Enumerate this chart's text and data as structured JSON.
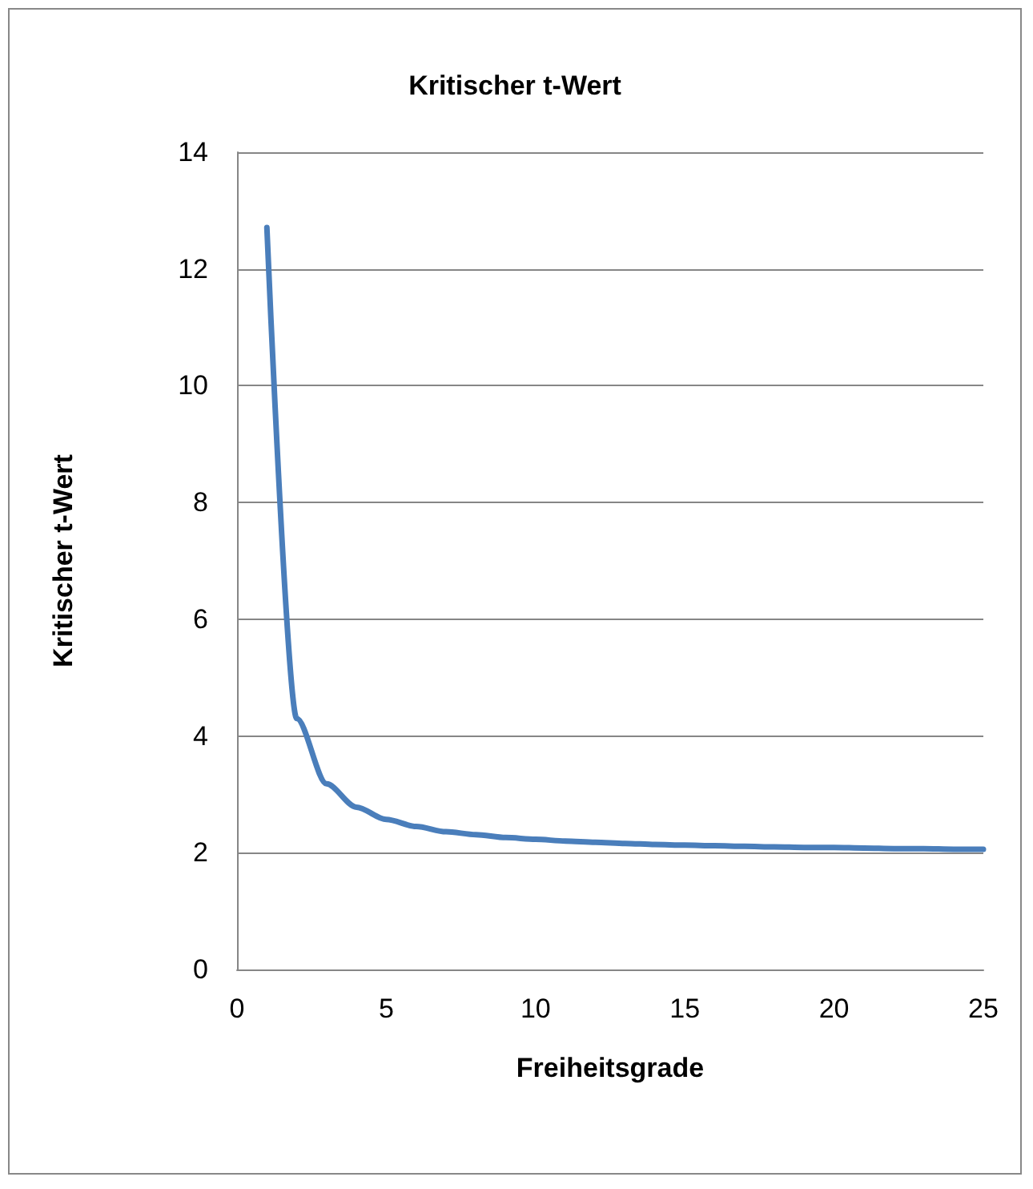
{
  "chart_data": {
    "type": "line",
    "title": "Kritischer t-Wert",
    "xlabel": "Freiheitsgrade",
    "ylabel": "Kritischer t-Wert",
    "x": [
      1,
      2,
      3,
      4,
      5,
      6,
      7,
      8,
      9,
      10,
      11,
      12,
      13,
      14,
      15,
      16,
      17,
      18,
      19,
      20,
      21,
      22,
      23,
      24,
      25
    ],
    "series": [
      {
        "color": "#4a7ebb",
        "values": [
          12.71,
          4.3,
          3.18,
          2.78,
          2.57,
          2.45,
          2.36,
          2.31,
          2.26,
          2.23,
          2.2,
          2.18,
          2.16,
          2.14,
          2.13,
          2.12,
          2.11,
          2.1,
          2.09,
          2.09,
          2.08,
          2.07,
          2.07,
          2.06,
          2.06
        ]
      }
    ],
    "xlim": [
      0,
      25
    ],
    "xticks": [
      0,
      5,
      10,
      15,
      20,
      25
    ],
    "ylim": [
      0,
      14
    ],
    "yticks": [
      0,
      2,
      4,
      6,
      8,
      10,
      12,
      14
    ],
    "grid": "y",
    "marker": "none",
    "line_style": "solid"
  }
}
